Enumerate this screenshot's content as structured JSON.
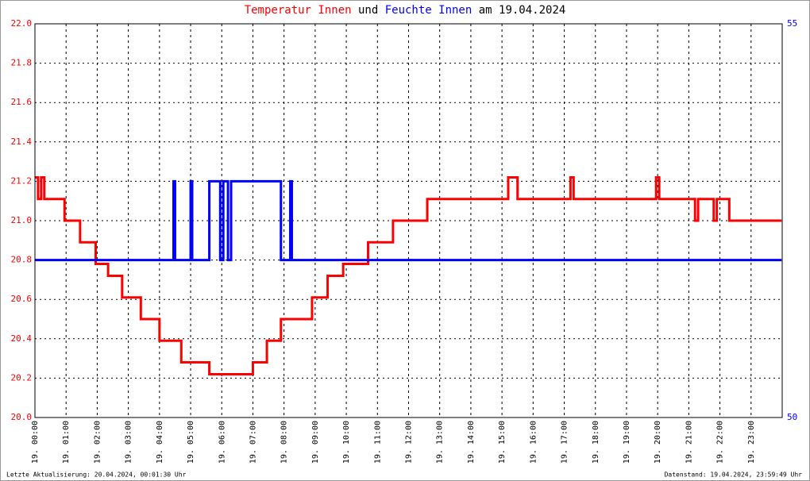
{
  "chart_data": {
    "type": "line",
    "title_joiners": [
      "und",
      "am 19.04.2024"
    ],
    "footer_left": "Letzte Aktualisierung: 20.04.2024, 00:01:30 Uhr",
    "footer_right": "Datenstand: 19.04.2024, 23:59:49 Uhr",
    "xlim": [
      0,
      24
    ],
    "xticks": [
      {
        "value": 0,
        "label": "19. 00:00"
      },
      {
        "value": 1,
        "label": "19. 01:00"
      },
      {
        "value": 2,
        "label": "19. 02:00"
      },
      {
        "value": 3,
        "label": "19. 03:00"
      },
      {
        "value": 4,
        "label": "19. 04:00"
      },
      {
        "value": 5,
        "label": "19. 05:00"
      },
      {
        "value": 6,
        "label": "19. 06:00"
      },
      {
        "value": 7,
        "label": "19. 07:00"
      },
      {
        "value": 8,
        "label": "19. 08:00"
      },
      {
        "value": 9,
        "label": "19. 09:00"
      },
      {
        "value": 10,
        "label": "19. 10:00"
      },
      {
        "value": 11,
        "label": "19. 11:00"
      },
      {
        "value": 12,
        "label": "19. 12:00"
      },
      {
        "value": 13,
        "label": "19. 13:00"
      },
      {
        "value": 14,
        "label": "19. 14:00"
      },
      {
        "value": 15,
        "label": "19. 15:00"
      },
      {
        "value": 16,
        "label": "19. 16:00"
      },
      {
        "value": 17,
        "label": "19. 17:00"
      },
      {
        "value": 18,
        "label": "19. 18:00"
      },
      {
        "value": 19,
        "label": "19. 19:00"
      },
      {
        "value": 20,
        "label": "19. 20:00"
      },
      {
        "value": 21,
        "label": "19. 21:00"
      },
      {
        "value": 22,
        "label": "19. 22:00"
      },
      {
        "value": 23,
        "label": "19. 23:00"
      }
    ],
    "ylim": [
      20,
      22
    ],
    "yticks": [
      {
        "value": 20,
        "label": "20.0"
      },
      20.2,
      20.4,
      20.6,
      20.8,
      {
        "value": 21,
        "label": "21.0"
      },
      21.2,
      21.4,
      21.6,
      21.8,
      {
        "value": 22,
        "label": "22.0"
      }
    ],
    "y2lim": [
      50,
      55
    ],
    "y2ticks": [
      50,
      55
    ],
    "grid": true,
    "series": [
      {
        "name": "Temperatur Innen",
        "color": "#ff0000",
        "x": [
          0,
          0.1,
          0.1,
          0.2,
          0.2,
          0.3,
          0.3,
          0.4,
          0.95,
          0.95,
          1.45,
          1.45,
          1.95,
          1.95,
          2.35,
          2.35,
          2.8,
          2.8,
          3.4,
          3.4,
          4.0,
          4.0,
          4.7,
          4.7,
          5.6,
          5.6,
          7.0,
          7.0,
          7.45,
          7.45,
          7.9,
          7.9,
          8.9,
          8.9,
          9.4,
          9.4,
          9.9,
          9.9,
          10.7,
          10.7,
          11.5,
          11.5,
          12.6,
          12.6,
          15.2,
          15.2,
          15.5,
          15.5,
          17.2,
          17.2,
          17.3,
          17.3,
          19.95,
          19.95,
          20.05,
          20.05,
          21.2,
          21.2,
          21.3,
          21.3,
          21.8,
          21.8,
          21.9,
          21.9,
          22.3,
          22.3,
          23.98
        ],
        "values": [
          21.22,
          21.22,
          21.11,
          21.11,
          21.22,
          21.22,
          21.11,
          21.11,
          21.11,
          21.0,
          21.0,
          20.89,
          20.89,
          20.78,
          20.78,
          20.72,
          20.72,
          20.61,
          20.61,
          20.5,
          20.5,
          20.39,
          20.39,
          20.28,
          20.28,
          20.22,
          20.22,
          20.28,
          20.28,
          20.39,
          20.39,
          20.5,
          20.5,
          20.61,
          20.61,
          20.72,
          20.72,
          20.78,
          20.78,
          20.89,
          20.89,
          21.0,
          21.0,
          21.11,
          21.11,
          21.22,
          21.22,
          21.11,
          21.11,
          21.22,
          21.22,
          21.11,
          21.11,
          21.22,
          21.22,
          21.11,
          21.11,
          21.0,
          21.0,
          21.11,
          21.11,
          21.0,
          21.0,
          21.11,
          21.11,
          21.0,
          21.0
        ]
      },
      {
        "name": "Feuchte Innen",
        "color": "#0000ff",
        "axis": "y2",
        "x": [
          0,
          4.45,
          4.45,
          4.5,
          4.5,
          5.0,
          5.0,
          5.05,
          5.05,
          5.6,
          5.6,
          5.95,
          5.95,
          6.05,
          6.05,
          6.2,
          6.2,
          6.3,
          6.3,
          7.9,
          7.9,
          8.2,
          8.2,
          8.25,
          8.25,
          23.98
        ],
        "values": [
          52,
          52,
          53,
          53,
          52,
          52,
          53,
          53,
          52,
          52,
          53,
          53,
          52,
          52,
          53,
          53,
          52,
          52,
          53,
          53,
          52,
          52,
          53,
          53,
          52,
          52
        ]
      }
    ]
  }
}
